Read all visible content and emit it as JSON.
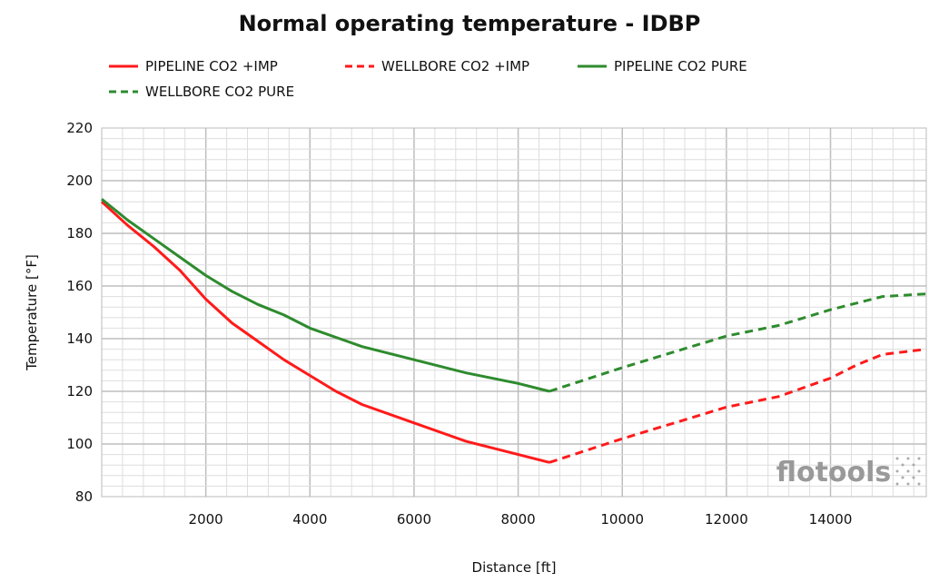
{
  "chart_data": {
    "type": "line",
    "title": "Normal operating temperature - IDBP",
    "xlabel": "Distance [ft]",
    "ylabel": "Temperature [°F]",
    "xlim": [
      0,
      15840
    ],
    "ylim": [
      80,
      220
    ],
    "xticks": [
      2000,
      4000,
      6000,
      8000,
      10000,
      12000,
      14000
    ],
    "yticks": [
      80,
      100,
      120,
      140,
      160,
      180,
      200,
      220
    ],
    "grid": true,
    "legend_position": "top",
    "watermark": "flotools",
    "series": [
      {
        "name": "PIPELINE CO2 +IMP",
        "color": "#ff1a1a",
        "dash": false,
        "x": [
          0,
          500,
          1000,
          1500,
          2000,
          2500,
          3000,
          3500,
          4000,
          4500,
          5000,
          6000,
          7000,
          8000,
          8600
        ],
        "y": [
          192,
          183,
          175,
          166,
          155,
          146,
          139,
          132,
          126,
          120,
          115,
          108,
          101,
          96,
          93
        ]
      },
      {
        "name": "WELLBORE CO2 +IMP",
        "color": "#ff1a1a",
        "dash": true,
        "x": [
          8600,
          10000,
          11000,
          12000,
          13000,
          14000,
          14500,
          15000,
          15840
        ],
        "y": [
          93,
          102,
          108,
          114,
          118,
          125,
          130,
          134,
          136
        ]
      },
      {
        "name": "PIPELINE CO2 PURE",
        "color": "#2e8b2e",
        "dash": false,
        "x": [
          0,
          500,
          1000,
          1500,
          2000,
          2500,
          3000,
          3500,
          4000,
          5000,
          6000,
          7000,
          8000,
          8600
        ],
        "y": [
          193,
          185,
          178,
          171,
          164,
          158,
          153,
          149,
          144,
          137,
          132,
          127,
          123,
          120
        ]
      },
      {
        "name": "WELLBORE CO2 PURE",
        "color": "#2e8b2e",
        "dash": true,
        "x": [
          8600,
          10000,
          11000,
          12000,
          13000,
          14000,
          15000,
          15840
        ],
        "y": [
          120,
          129,
          135,
          141,
          145,
          151,
          156,
          157
        ]
      }
    ]
  }
}
